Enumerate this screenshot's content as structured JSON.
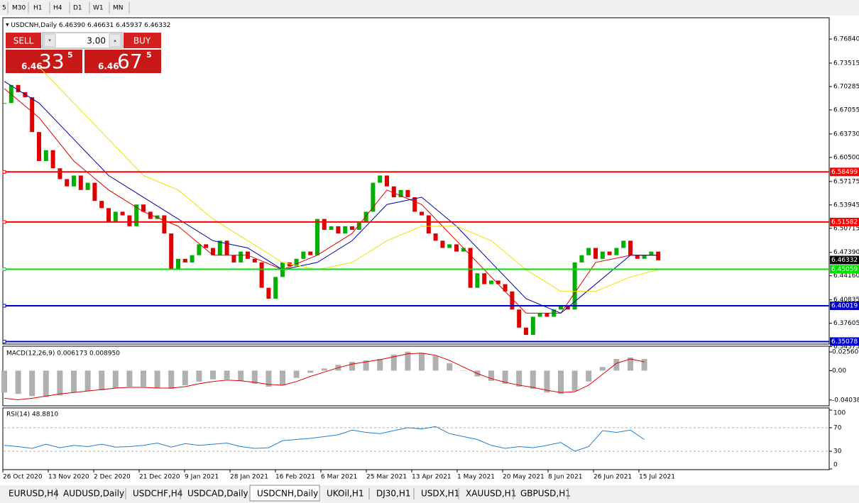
{
  "toolbar": [
    "5",
    "M30",
    "H1",
    "H4",
    "D1",
    "W1",
    "MN"
  ],
  "chart_data": {
    "type": "candlestick",
    "title": "USDCNH,Daily",
    "quote": "6.46390 6.46631 6.45937 6.46332",
    "closes": [
      6.68,
      6.705,
      6.695,
      6.688,
      6.64,
      6.6,
      6.615,
      6.59,
      6.575,
      6.565,
      6.58,
      6.56,
      6.57,
      6.545,
      6.535,
      6.515,
      6.53,
      6.525,
      6.51,
      6.54,
      6.53,
      6.52,
      6.525,
      6.5,
      6.45,
      6.465,
      6.46,
      6.47,
      6.485,
      6.48,
      6.47,
      6.49,
      6.47,
      6.46,
      6.475,
      6.465,
      6.46,
      6.425,
      6.41,
      6.44,
      6.46,
      6.455,
      6.465,
      6.475,
      6.47,
      6.52,
      6.505,
      6.51,
      6.5,
      6.51,
      6.505,
      6.515,
      6.53,
      6.57,
      6.58,
      6.565,
      6.55,
      6.56,
      6.55,
      6.53,
      6.525,
      6.5,
      6.49,
      6.48,
      6.485,
      6.475,
      6.48,
      6.425,
      6.445,
      6.43,
      6.435,
      6.43,
      6.42,
      6.395,
      6.37,
      6.36,
      6.385,
      6.39,
      6.385,
      6.395,
      6.4,
      6.395,
      6.46,
      6.47,
      6.48,
      6.465,
      6.475,
      6.47,
      6.48,
      6.49,
      6.47,
      6.465,
      6.47,
      6.475,
      6.463
    ],
    "up_color": "#00b000",
    "down_color": "#e00000",
    "ylim": [
      6.3473,
      6.7978
    ],
    "yticks": [
      {
        "value": 6.7684,
        "label": "6.76840"
      },
      6.73515,
      6.70285,
      6.67055,
      {
        "value": 6.6373,
        "label": "6.63730"
      },
      {
        "value": 6.605,
        "label": "6.60500"
      },
      6.57175,
      6.53945,
      6.50715,
      {
        "value": 6.4739,
        "label": "6.47390"
      },
      {
        "value": 6.4416,
        "label": "6.44160"
      },
      6.40835,
      6.37605,
      6.34375
    ],
    "levels": [
      {
        "value": 6.58499,
        "color": "#ff0000"
      },
      {
        "value": 6.51582,
        "color": "#ff0000"
      },
      {
        "value": 6.45059,
        "color": "#00e000"
      },
      {
        "value": 6.40019,
        "color": "#0000cc"
      },
      {
        "value": 6.35078,
        "color": "#0000cc"
      }
    ],
    "current_price": 6.46332,
    "moving_averages": {
      "x": [
        0,
        5,
        10,
        15,
        20,
        25,
        30,
        35,
        40,
        45,
        50,
        55,
        60,
        65,
        70,
        75,
        80,
        85,
        90,
        94
      ],
      "series": [
        {
          "color": "#e00000",
          "values": [
            6.7,
            6.66,
            6.6,
            6.56,
            6.53,
            6.51,
            6.47,
            6.47,
            6.45,
            6.47,
            6.5,
            6.56,
            6.54,
            6.49,
            6.44,
            6.39,
            6.39,
            6.46,
            6.47,
            6.47
          ]
        },
        {
          "color": "#0000b0",
          "values": [
            6.71,
            6.68,
            6.63,
            6.58,
            6.55,
            6.52,
            6.49,
            6.48,
            6.45,
            6.46,
            6.49,
            6.54,
            6.55,
            6.51,
            6.46,
            6.41,
            6.39,
            6.43,
            6.47,
            6.47
          ]
        },
        {
          "color": "#f0e000",
          "values": [
            null,
            6.73,
            6.68,
            6.63,
            6.58,
            6.56,
            6.52,
            6.49,
            6.46,
            6.45,
            6.46,
            6.49,
            6.51,
            6.51,
            6.49,
            6.45,
            6.42,
            6.42,
            6.44,
            6.45
          ]
        }
      ]
    }
  },
  "trade_panel": {
    "sell": "SELL",
    "buy": "BUY",
    "lot": "3.00",
    "bid": {
      "big": "6.46",
      "pips": "33",
      "fraction": "5"
    },
    "ask": {
      "big": "6.46",
      "pips": "67",
      "fraction": "5"
    }
  },
  "macd": {
    "label": "MACD(12,26,9) 0.006173 0.008950",
    "ylim": [
      -0.0483,
      0.0335
    ],
    "yticks": [
      0.025609,
      {
        "value": 0,
        "label": "0.00"
      },
      -0.040386
    ],
    "histogram": [
      -0.03,
      -0.032,
      -0.035,
      -0.036,
      -0.034,
      -0.03,
      -0.028,
      -0.027,
      -0.024,
      -0.022,
      -0.022,
      -0.024,
      -0.025,
      -0.02,
      -0.015,
      -0.012,
      -0.012,
      -0.014,
      -0.018,
      -0.022,
      -0.02,
      -0.01,
      -0.003,
      0.003,
      0.008,
      0.012,
      0.014,
      0.016,
      0.022,
      0.026,
      0.024,
      0.02,
      0.01,
      0.0,
      -0.008,
      -0.014,
      -0.018,
      -0.022,
      -0.025,
      -0.03,
      -0.032,
      -0.028,
      -0.015,
      0.005,
      0.016,
      0.018,
      0.016
    ],
    "signal": [
      -0.038,
      -0.04,
      -0.038,
      -0.035,
      -0.032,
      -0.03,
      -0.028,
      -0.026,
      -0.024,
      -0.023,
      -0.023,
      -0.024,
      -0.024,
      -0.022,
      -0.018,
      -0.015,
      -0.013,
      -0.014,
      -0.016,
      -0.019,
      -0.02,
      -0.015,
      -0.008,
      -0.002,
      0.004,
      0.009,
      0.012,
      0.015,
      0.019,
      0.023,
      0.024,
      0.021,
      0.014,
      0.005,
      -0.004,
      -0.011,
      -0.016,
      -0.02,
      -0.023,
      -0.027,
      -0.03,
      -0.029,
      -0.02,
      -0.005,
      0.01,
      0.016,
      0.012
    ],
    "histogram_color": "#b0b0b0",
    "signal_color": "#e00000"
  },
  "rsi": {
    "label": "RSI(14) 48.8810",
    "ylim": [
      0,
      100
    ],
    "yticks": [
      100,
      70,
      30,
      0
    ],
    "levels": [
      70,
      30
    ],
    "color": "#1e7fd8",
    "values": [
      40,
      38,
      35,
      42,
      36,
      40,
      38,
      42,
      37,
      38,
      40,
      44,
      37,
      43,
      40,
      42,
      44,
      38,
      35,
      36,
      48,
      50,
      52,
      55,
      58,
      66,
      62,
      60,
      65,
      70,
      68,
      72,
      60,
      55,
      50,
      40,
      35,
      38,
      36,
      40,
      45,
      30,
      38,
      65,
      62,
      66,
      50
    ]
  },
  "dates": [
    "26 Oct 2020",
    "13 Nov 2020",
    "2 Dec 2020",
    "21 Dec 2020",
    "9 Jan 2021",
    "28 Jan 2021",
    "16 Feb 2021",
    "6 Mar 2021",
    "25 Mar 2021",
    "13 Apr 2021",
    "1 May 2021",
    "20 May 2021",
    "8 Jun 2021",
    "26 Jun 2021",
    "15 Jul 2021"
  ],
  "tabs": [
    "EURUSD,H4",
    "AUDUSD,Daily",
    "USDCHF,H4",
    "USDCAD,Daily",
    "USDCNH,Daily",
    "UKOil,H1",
    "DJ30,H1",
    "USDX,H1",
    "XAUUSD,H1",
    "GBPUSD,H1"
  ],
  "active_tab": 4
}
